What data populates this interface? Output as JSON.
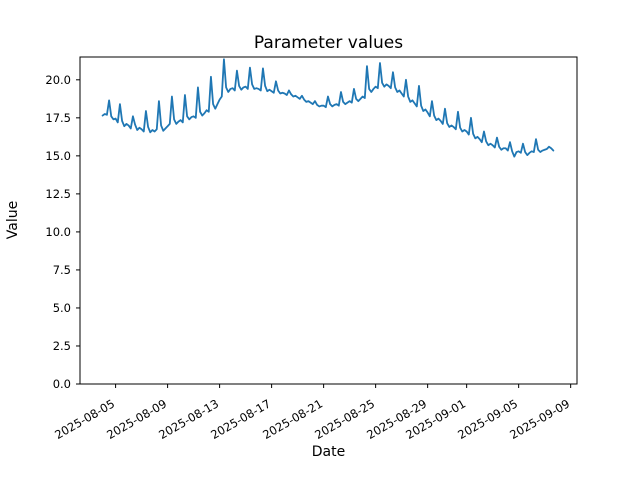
{
  "figure": {
    "title": "Parameter values",
    "xlabel": "Date",
    "ylabel": "Value"
  },
  "chart_data": {
    "type": "line",
    "title": "Parameter values",
    "xlabel": "Date",
    "ylabel": "Value",
    "grid": false,
    "legend": "none",
    "line_color": "#1f77b4",
    "line_width": 1.8,
    "frame_color": "#000000",
    "background": "#ffffff",
    "x_start_date": "2025-08-04",
    "x_step_days": 0.1666667,
    "xlim_days_from_start": [
      -1.7375,
      36.4875
    ],
    "ylim": [
      0,
      21.5
    ],
    "y_ticks": [
      {
        "value": 0.0,
        "label": "0.0"
      },
      {
        "value": 2.5,
        "label": "2.5"
      },
      {
        "value": 5.0,
        "label": "5.0"
      },
      {
        "value": 7.5,
        "label": "7.5"
      },
      {
        "value": 10.0,
        "label": "10.0"
      },
      {
        "value": 12.5,
        "label": "12.5"
      },
      {
        "value": 15.0,
        "label": "15.0"
      },
      {
        "value": 17.5,
        "label": "17.5"
      },
      {
        "value": 20.0,
        "label": "20.0"
      }
    ],
    "x_ticks": [
      {
        "day": 1,
        "label": "2025-08-05"
      },
      {
        "day": 5,
        "label": "2025-08-09"
      },
      {
        "day": 9,
        "label": "2025-08-13"
      },
      {
        "day": 13,
        "label": "2025-08-17"
      },
      {
        "day": 17,
        "label": "2025-08-21"
      },
      {
        "day": 21,
        "label": "2025-08-25"
      },
      {
        "day": 25,
        "label": "2025-08-29"
      },
      {
        "day": 28,
        "label": "2025-09-01"
      },
      {
        "day": 32,
        "label": "2025-09-05"
      },
      {
        "day": 36,
        "label": "2025-09-09"
      }
    ],
    "values": [
      17.65,
      17.75,
      17.7,
      18.65,
      17.6,
      17.4,
      17.45,
      17.2,
      18.4,
      17.3,
      16.95,
      17.1,
      17.0,
      16.8,
      17.6,
      17.05,
      16.7,
      16.85,
      16.75,
      16.6,
      17.95,
      16.9,
      16.55,
      16.7,
      16.6,
      16.75,
      18.6,
      17.0,
      16.65,
      16.8,
      16.95,
      17.1,
      18.9,
      17.4,
      17.1,
      17.25,
      17.35,
      17.2,
      19.0,
      17.6,
      17.4,
      17.55,
      17.6,
      17.5,
      19.5,
      17.9,
      17.65,
      17.8,
      18.0,
      17.9,
      20.2,
      18.4,
      18.1,
      18.4,
      18.7,
      18.9,
      21.35,
      19.5,
      19.2,
      19.4,
      19.45,
      19.3,
      20.6,
      19.6,
      19.35,
      19.5,
      19.55,
      19.4,
      20.8,
      19.7,
      19.4,
      19.45,
      19.4,
      19.3,
      20.75,
      19.6,
      19.25,
      19.35,
      19.25,
      19.15,
      19.9,
      19.3,
      19.1,
      19.15,
      19.1,
      19.0,
      19.3,
      19.05,
      18.9,
      18.95,
      18.85,
      18.75,
      18.95,
      18.7,
      18.55,
      18.6,
      18.5,
      18.4,
      18.6,
      18.35,
      18.25,
      18.3,
      18.3,
      18.2,
      18.9,
      18.4,
      18.25,
      18.35,
      18.4,
      18.3,
      19.2,
      18.55,
      18.4,
      18.5,
      18.6,
      18.5,
      19.4,
      18.75,
      18.6,
      18.75,
      18.9,
      18.8,
      20.9,
      19.4,
      19.2,
      19.4,
      19.55,
      19.45,
      21.1,
      19.8,
      19.55,
      19.7,
      19.6,
      19.45,
      20.5,
      19.5,
      19.2,
      19.3,
      19.1,
      18.9,
      20.0,
      18.9,
      18.55,
      18.65,
      18.45,
      18.25,
      19.6,
      18.3,
      17.95,
      18.05,
      17.85,
      17.6,
      18.6,
      17.65,
      17.35,
      17.45,
      17.3,
      17.1,
      18.1,
      17.15,
      16.9,
      17.0,
      16.9,
      16.75,
      17.9,
      16.85,
      16.6,
      16.7,
      16.6,
      16.4,
      17.5,
      16.45,
      16.15,
      16.25,
      16.1,
      15.9,
      16.6,
      15.95,
      15.7,
      15.8,
      15.7,
      15.55,
      16.2,
      15.6,
      15.4,
      15.5,
      15.5,
      15.35,
      15.9,
      15.3,
      14.95,
      15.25,
      15.3,
      15.2,
      15.8,
      15.25,
      15.05,
      15.2,
      15.3,
      15.25,
      16.1,
      15.4,
      15.25,
      15.35,
      15.4,
      15.45,
      15.6,
      15.5,
      15.35
    ]
  }
}
